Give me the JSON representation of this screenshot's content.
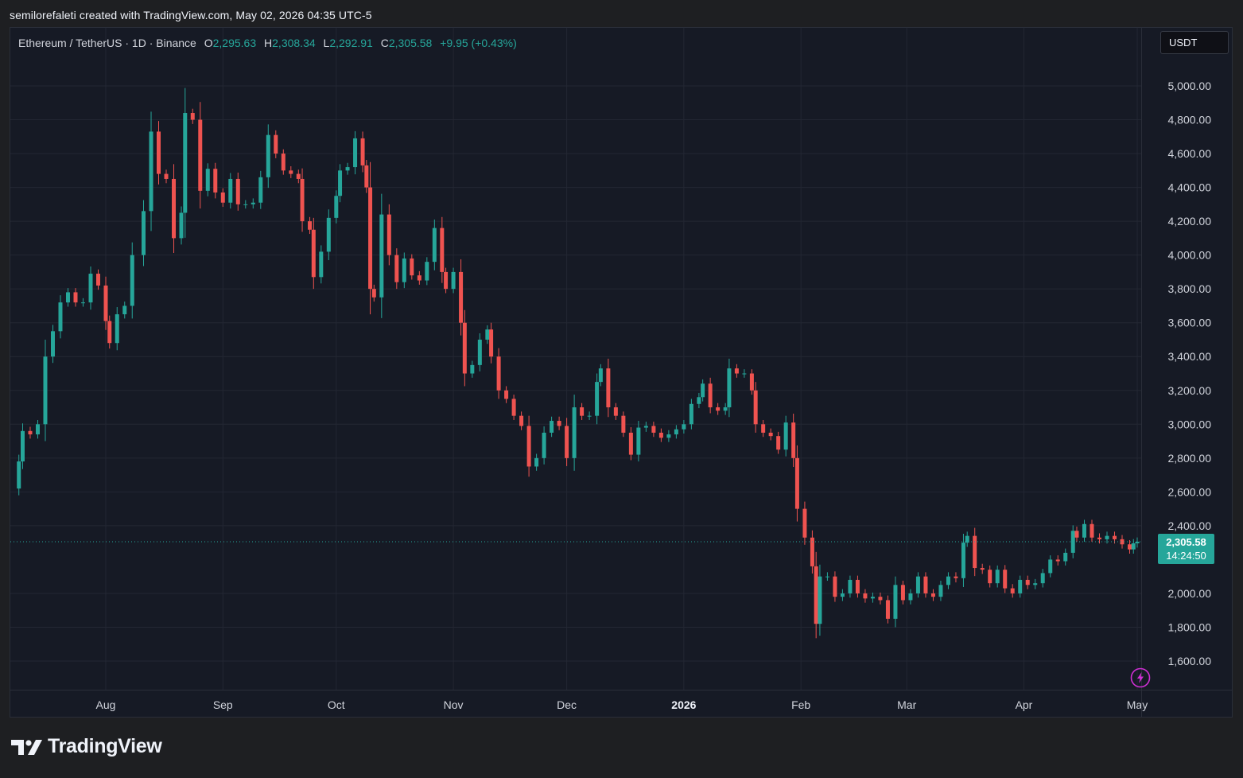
{
  "caption": "semilorefaleti created with TradingView.com, May 02, 2026 04:35 UTC-5",
  "legend": {
    "symbol": "Ethereum / TetherUS · 1D · Binance",
    "open_key": "O",
    "open": "2,295.63",
    "high_key": "H",
    "high": "2,308.34",
    "low_key": "L",
    "low": "2,292.91",
    "close_key": "C",
    "close": "2,305.58",
    "change": "+9.95 (+0.43%)"
  },
  "currency_button": "USDT",
  "price_label": {
    "price": "2,305.58",
    "countdown": "14:24:50"
  },
  "logo_text": "TradingView",
  "colors": {
    "up": "#26a69a",
    "down": "#ef5350",
    "background": "#161a25",
    "grid": "#232733",
    "text": "#d1d4dc"
  },
  "icons": {
    "logo": "tradingview-logo-icon",
    "bolt": "lightning-bolt-icon"
  },
  "chart_data": {
    "type": "candlestick",
    "title": "Ethereum / TetherUS · 1D · Binance",
    "y_axis_side": "right",
    "ylim": [
      1500,
      5150
    ],
    "y_ticks": [
      {
        "value": 5000,
        "label": "5,000.00"
      },
      {
        "value": 4800,
        "label": "4,800.00"
      },
      {
        "value": 4600,
        "label": "4,600.00"
      },
      {
        "value": 4400,
        "label": "4,400.00"
      },
      {
        "value": 4200,
        "label": "4,200.00"
      },
      {
        "value": 4000,
        "label": "4,000.00"
      },
      {
        "value": 3800,
        "label": "3,800.00"
      },
      {
        "value": 3600,
        "label": "3,600.00"
      },
      {
        "value": 3400,
        "label": "3,400.00"
      },
      {
        "value": 3200,
        "label": "3,200.00"
      },
      {
        "value": 3000,
        "label": "3,000.00"
      },
      {
        "value": 2800,
        "label": "2,800.00"
      },
      {
        "value": 2600,
        "label": "2,600.00"
      },
      {
        "value": 2400,
        "label": "2,400.00"
      },
      {
        "value": 2000,
        "label": "2,000.00"
      },
      {
        "value": 1800,
        "label": "1,800.00"
      },
      {
        "value": 1600,
        "label": "1,600.00"
      }
    ],
    "x_ticks": [
      {
        "date": "2025-08-01",
        "label": "Aug",
        "bold": false
      },
      {
        "date": "2025-09-01",
        "label": "Sep",
        "bold": false
      },
      {
        "date": "2025-10-01",
        "label": "Oct",
        "bold": false
      },
      {
        "date": "2025-11-01",
        "label": "Nov",
        "bold": false
      },
      {
        "date": "2025-12-01",
        "label": "Dec",
        "bold": false
      },
      {
        "date": "2026-01-01",
        "label": "2026",
        "bold": true
      },
      {
        "date": "2026-02-01",
        "label": "Feb",
        "bold": false
      },
      {
        "date": "2026-03-01",
        "label": "Mar",
        "bold": false
      },
      {
        "date": "2026-04-01",
        "label": "Apr",
        "bold": false
      },
      {
        "date": "2026-05-01",
        "label": "May",
        "bold": false
      }
    ],
    "last_price": 2305.58,
    "grid": true,
    "series": [
      {
        "date": "2025-07-02",
        "close": 2560
      },
      {
        "date": "2025-07-03",
        "close": 2640
      },
      {
        "date": "2025-07-06",
        "close": 2620
      },
      {
        "date": "2025-07-09",
        "close": 2780
      },
      {
        "date": "2025-07-10",
        "close": 2960
      },
      {
        "date": "2025-07-12",
        "close": 2940
      },
      {
        "date": "2025-07-14",
        "close": 3000
      },
      {
        "date": "2025-07-16",
        "close": 3400
      },
      {
        "date": "2025-07-18",
        "close": 3550
      },
      {
        "date": "2025-07-20",
        "close": 3720
      },
      {
        "date": "2025-07-22",
        "close": 3780
      },
      {
        "date": "2025-07-24",
        "close": 3720
      },
      {
        "date": "2025-07-26",
        "close": 3720
      },
      {
        "date": "2025-07-28",
        "close": 3890
      },
      {
        "date": "2025-07-30",
        "close": 3820
      },
      {
        "date": "2025-08-01",
        "close": 3610
      },
      {
        "date": "2025-08-02",
        "close": 3480
      },
      {
        "date": "2025-08-04",
        "close": 3650
      },
      {
        "date": "2025-08-06",
        "close": 3700
      },
      {
        "date": "2025-08-08",
        "close": 4000
      },
      {
        "date": "2025-08-11",
        "close": 4260
      },
      {
        "date": "2025-08-13",
        "close": 4730
      },
      {
        "date": "2025-08-15",
        "close": 4480
      },
      {
        "date": "2025-08-17",
        "close": 4450
      },
      {
        "date": "2025-08-19",
        "close": 4100
      },
      {
        "date": "2025-08-21",
        "close": 4250
      },
      {
        "date": "2025-08-22",
        "close": 4840
      },
      {
        "date": "2025-08-24",
        "close": 4800
      },
      {
        "date": "2025-08-26",
        "close": 4380
      },
      {
        "date": "2025-08-28",
        "close": 4510
      },
      {
        "date": "2025-08-30",
        "close": 4370
      },
      {
        "date": "2025-09-01",
        "close": 4310
      },
      {
        "date": "2025-09-03",
        "close": 4450
      },
      {
        "date": "2025-09-05",
        "close": 4300
      },
      {
        "date": "2025-09-07",
        "close": 4300
      },
      {
        "date": "2025-09-09",
        "close": 4310
      },
      {
        "date": "2025-09-11",
        "close": 4460
      },
      {
        "date": "2025-09-13",
        "close": 4710
      },
      {
        "date": "2025-09-15",
        "close": 4600
      },
      {
        "date": "2025-09-17",
        "close": 4500
      },
      {
        "date": "2025-09-19",
        "close": 4480
      },
      {
        "date": "2025-09-21",
        "close": 4450
      },
      {
        "date": "2025-09-22",
        "close": 4200
      },
      {
        "date": "2025-09-24",
        "close": 4150
      },
      {
        "date": "2025-09-25",
        "close": 3870
      },
      {
        "date": "2025-09-27",
        "close": 4020
      },
      {
        "date": "2025-09-29",
        "close": 4220
      },
      {
        "date": "2025-10-01",
        "close": 4350
      },
      {
        "date": "2025-10-02",
        "close": 4500
      },
      {
        "date": "2025-10-04",
        "close": 4520
      },
      {
        "date": "2025-10-06",
        "close": 4690
      },
      {
        "date": "2025-10-08",
        "close": 4530
      },
      {
        "date": "2025-10-09",
        "close": 4400
      },
      {
        "date": "2025-10-10",
        "close": 3800
      },
      {
        "date": "2025-10-11",
        "close": 3750
      },
      {
        "date": "2025-10-13",
        "close": 4240
      },
      {
        "date": "2025-10-15",
        "close": 4000
      },
      {
        "date": "2025-10-17",
        "close": 3840
      },
      {
        "date": "2025-10-19",
        "close": 3980
      },
      {
        "date": "2025-10-21",
        "close": 3880
      },
      {
        "date": "2025-10-23",
        "close": 3850
      },
      {
        "date": "2025-10-25",
        "close": 3960
      },
      {
        "date": "2025-10-27",
        "close": 4160
      },
      {
        "date": "2025-10-29",
        "close": 3900
      },
      {
        "date": "2025-10-30",
        "close": 3800
      },
      {
        "date": "2025-11-01",
        "close": 3900
      },
      {
        "date": "2025-11-03",
        "close": 3600
      },
      {
        "date": "2025-11-04",
        "close": 3300
      },
      {
        "date": "2025-11-06",
        "close": 3350
      },
      {
        "date": "2025-11-08",
        "close": 3500
      },
      {
        "date": "2025-11-10",
        "close": 3560
      },
      {
        "date": "2025-11-11",
        "close": 3400
      },
      {
        "date": "2025-11-13",
        "close": 3200
      },
      {
        "date": "2025-11-15",
        "close": 3150
      },
      {
        "date": "2025-11-17",
        "close": 3050
      },
      {
        "date": "2025-11-19",
        "close": 2990
      },
      {
        "date": "2025-11-21",
        "close": 2750
      },
      {
        "date": "2025-11-23",
        "close": 2800
      },
      {
        "date": "2025-11-25",
        "close": 2950
      },
      {
        "date": "2025-11-27",
        "close": 3020
      },
      {
        "date": "2025-11-29",
        "close": 2990
      },
      {
        "date": "2025-12-01",
        "close": 2800
      },
      {
        "date": "2025-12-03",
        "close": 3100
      },
      {
        "date": "2025-12-05",
        "close": 3050
      },
      {
        "date": "2025-12-07",
        "close": 3050
      },
      {
        "date": "2025-12-09",
        "close": 3250
      },
      {
        "date": "2025-12-10",
        "close": 3330
      },
      {
        "date": "2025-12-12",
        "close": 3100
      },
      {
        "date": "2025-12-14",
        "close": 3050
      },
      {
        "date": "2025-12-16",
        "close": 2950
      },
      {
        "date": "2025-12-18",
        "close": 2820
      },
      {
        "date": "2025-12-20",
        "close": 2980
      },
      {
        "date": "2025-12-22",
        "close": 2990
      },
      {
        "date": "2025-12-24",
        "close": 2950
      },
      {
        "date": "2025-12-26",
        "close": 2920
      },
      {
        "date": "2025-12-28",
        "close": 2940
      },
      {
        "date": "2025-12-30",
        "close": 2970
      },
      {
        "date": "2026-01-01",
        "close": 3000
      },
      {
        "date": "2026-01-03",
        "close": 3120
      },
      {
        "date": "2026-01-05",
        "close": 3160
      },
      {
        "date": "2026-01-06",
        "close": 3240
      },
      {
        "date": "2026-01-08",
        "close": 3100
      },
      {
        "date": "2026-01-10",
        "close": 3080
      },
      {
        "date": "2026-01-12",
        "close": 3100
      },
      {
        "date": "2026-01-13",
        "close": 3330
      },
      {
        "date": "2026-01-15",
        "close": 3300
      },
      {
        "date": "2026-01-17",
        "close": 3300
      },
      {
        "date": "2026-01-19",
        "close": 3200
      },
      {
        "date": "2026-01-20",
        "close": 3000
      },
      {
        "date": "2026-01-22",
        "close": 2950
      },
      {
        "date": "2026-01-24",
        "close": 2930
      },
      {
        "date": "2026-01-26",
        "close": 2850
      },
      {
        "date": "2026-01-28",
        "close": 3010
      },
      {
        "date": "2026-01-30",
        "close": 2800
      },
      {
        "date": "2026-01-31",
        "close": 2500
      },
      {
        "date": "2026-02-02",
        "close": 2330
      },
      {
        "date": "2026-02-04",
        "close": 2160
      },
      {
        "date": "2026-02-05",
        "close": 1820
      },
      {
        "date": "2026-02-06",
        "close": 2100
      },
      {
        "date": "2026-02-08",
        "close": 2100
      },
      {
        "date": "2026-02-10",
        "close": 1980
      },
      {
        "date": "2026-02-12",
        "close": 2000
      },
      {
        "date": "2026-02-14",
        "close": 2080
      },
      {
        "date": "2026-02-16",
        "close": 2000
      },
      {
        "date": "2026-02-18",
        "close": 1970
      },
      {
        "date": "2026-02-20",
        "close": 1980
      },
      {
        "date": "2026-02-22",
        "close": 1960
      },
      {
        "date": "2026-02-24",
        "close": 1850
      },
      {
        "date": "2026-02-26",
        "close": 2050
      },
      {
        "date": "2026-02-28",
        "close": 1960
      },
      {
        "date": "2026-03-02",
        "close": 2000
      },
      {
        "date": "2026-03-04",
        "close": 2100
      },
      {
        "date": "2026-03-06",
        "close": 2000
      },
      {
        "date": "2026-03-08",
        "close": 1980
      },
      {
        "date": "2026-03-10",
        "close": 2050
      },
      {
        "date": "2026-03-12",
        "close": 2100
      },
      {
        "date": "2026-03-14",
        "close": 2090
      },
      {
        "date": "2026-03-16",
        "close": 2300
      },
      {
        "date": "2026-03-17",
        "close": 2340
      },
      {
        "date": "2026-03-19",
        "close": 2150
      },
      {
        "date": "2026-03-21",
        "close": 2140
      },
      {
        "date": "2026-03-23",
        "close": 2060
      },
      {
        "date": "2026-03-25",
        "close": 2140
      },
      {
        "date": "2026-03-27",
        "close": 2030
      },
      {
        "date": "2026-03-29",
        "close": 2000
      },
      {
        "date": "2026-03-31",
        "close": 2080
      },
      {
        "date": "2026-04-02",
        "close": 2050
      },
      {
        "date": "2026-04-04",
        "close": 2060
      },
      {
        "date": "2026-04-06",
        "close": 2120
      },
      {
        "date": "2026-04-08",
        "close": 2200
      },
      {
        "date": "2026-04-10",
        "close": 2190
      },
      {
        "date": "2026-04-12",
        "close": 2240
      },
      {
        "date": "2026-04-14",
        "close": 2370
      },
      {
        "date": "2026-04-15",
        "close": 2330
      },
      {
        "date": "2026-04-17",
        "close": 2410
      },
      {
        "date": "2026-04-19",
        "close": 2330
      },
      {
        "date": "2026-04-21",
        "close": 2320
      },
      {
        "date": "2026-04-23",
        "close": 2340
      },
      {
        "date": "2026-04-25",
        "close": 2320
      },
      {
        "date": "2026-04-27",
        "close": 2290
      },
      {
        "date": "2026-04-29",
        "close": 2260
      },
      {
        "date": "2026-04-30",
        "close": 2296
      },
      {
        "date": "2026-05-01",
        "close": 2305.58
      }
    ]
  }
}
